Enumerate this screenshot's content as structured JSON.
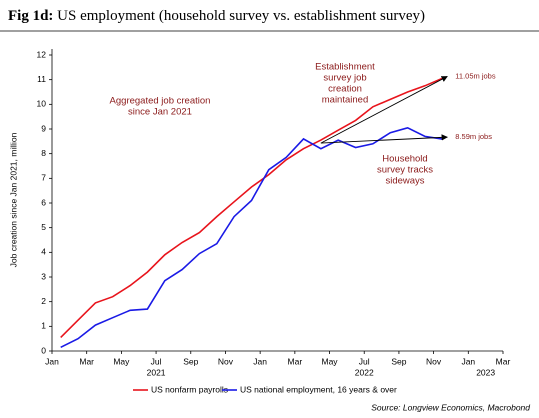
{
  "chart_data": {
    "type": "line",
    "title_prefix": "Fig 1d:",
    "title": "US employment (household survey vs. establishment survey)",
    "y_label": "Job creation since Jan 2021, million",
    "x": [
      "2021-01",
      "2021-02",
      "2021-03",
      "2021-04",
      "2021-05",
      "2021-06",
      "2021-07",
      "2021-08",
      "2021-09",
      "2021-10",
      "2021-11",
      "2021-12",
      "2022-01",
      "2022-02",
      "2022-03",
      "2022-04",
      "2022-05",
      "2022-06",
      "2022-07",
      "2022-08",
      "2022-09",
      "2022-10",
      "2022-11"
    ],
    "series": [
      {
        "name": "US nonfarm payrolls",
        "color": "#e8141c",
        "values": [
          0.55,
          1.25,
          1.95,
          2.2,
          2.65,
          3.2,
          3.9,
          4.4,
          4.8,
          5.45,
          6.05,
          6.65,
          7.15,
          7.75,
          8.2,
          8.55,
          8.95,
          9.35,
          9.9,
          10.2,
          10.5,
          10.75,
          11.05
        ]
      },
      {
        "name": "US national employment, 16 years & over",
        "color": "#1a1ae6",
        "values": [
          0.15,
          0.5,
          1.05,
          1.35,
          1.65,
          1.7,
          2.85,
          3.3,
          3.95,
          4.35,
          5.45,
          6.1,
          7.35,
          7.85,
          8.6,
          8.2,
          8.55,
          8.25,
          8.4,
          8.85,
          9.05,
          8.7,
          8.59
        ]
      }
    ],
    "xlim": [
      "2021-01",
      "2023-03"
    ],
    "xticks": [
      {
        "value": "2021-01",
        "label": "Jan"
      },
      {
        "value": "2021-03",
        "label": "Mar"
      },
      {
        "value": "2021-05",
        "label": "May"
      },
      {
        "value": "2021-07",
        "label": "Jul"
      },
      {
        "value": "2021-09",
        "label": "Sep"
      },
      {
        "value": "2021-11",
        "label": "Nov"
      },
      {
        "value": "2022-01",
        "label": "Jan"
      },
      {
        "value": "2022-03",
        "label": "Mar"
      },
      {
        "value": "2022-05",
        "label": "May"
      },
      {
        "value": "2022-07",
        "label": "Jul"
      },
      {
        "value": "2022-09",
        "label": "Sep"
      },
      {
        "value": "2022-11",
        "label": "Nov"
      },
      {
        "value": "2023-01",
        "label": "Jan"
      },
      {
        "value": "2023-03",
        "label": "Mar"
      }
    ],
    "x_year_labels": [
      {
        "value": "2021-07",
        "label": "2021"
      },
      {
        "value": "2022-07",
        "label": "2022"
      },
      {
        "value": "2023-02",
        "label": "2023"
      }
    ],
    "ylim": [
      0,
      12
    ],
    "yticks": [
      0,
      1,
      2,
      3,
      4,
      5,
      6,
      7,
      8,
      9,
      10,
      11,
      12
    ],
    "annotations": [
      {
        "lines": [
          "Aggregated job creation",
          "since Jan 2021"
        ]
      },
      {
        "lines": [
          "Establishment",
          "survey job",
          "creation",
          "maintained"
        ]
      },
      {
        "lines": [
          "Household",
          "survey tracks",
          "sideways"
        ]
      }
    ],
    "end_labels": [
      "11.05m jobs",
      "8.59m jobs"
    ],
    "source": "Source: Longview Economics, Macrobond"
  }
}
